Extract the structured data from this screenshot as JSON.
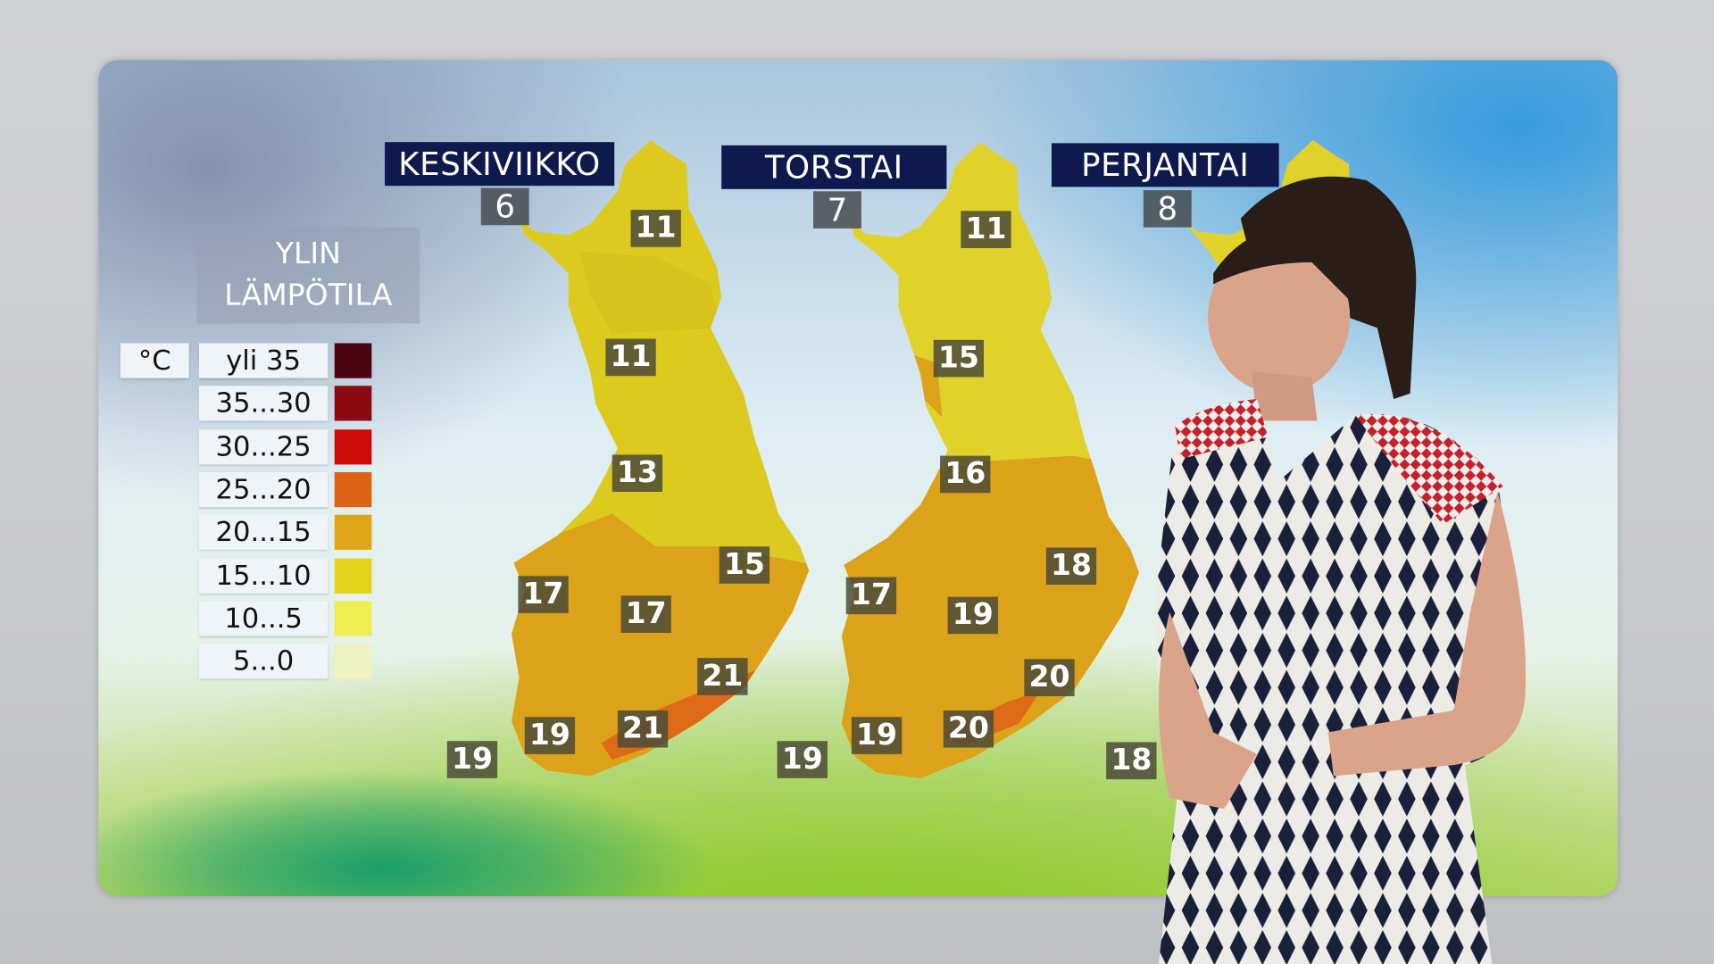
{
  "days": [
    {
      "label": "KESKIVIIKKO",
      "date": "6"
    },
    {
      "label": "TORSTAI",
      "date": "7"
    },
    {
      "label": "PERJANTAI",
      "date": "8"
    }
  ],
  "legend": {
    "title_line1": "YLIN",
    "title_line2": "LÄMPÖTILA",
    "unit": "°C",
    "items": [
      {
        "label": "yli 35",
        "color": "#4a0510"
      },
      {
        "label": "35...30",
        "color": "#8c0a12"
      },
      {
        "label": "30...25",
        "color": "#cc0a0a"
      },
      {
        "label": "25...20",
        "color": "#dd6414"
      },
      {
        "label": "20...15",
        "color": "#e0a418"
      },
      {
        "label": "15...10",
        "color": "#e6d21a"
      },
      {
        "label": "10...5",
        "color": "#eeee50"
      },
      {
        "label": "5...0",
        "color": "#eef2c0"
      }
    ]
  },
  "maps": [
    {
      "temps": [
        "11",
        "11",
        "13",
        "15",
        "17",
        "17",
        "21",
        "19",
        "21",
        "19"
      ]
    },
    {
      "temps": [
        "11",
        "15",
        "16",
        "18",
        "17",
        "19",
        "20",
        "19",
        "20",
        "19"
      ]
    },
    {
      "temps": [
        "18"
      ]
    }
  ]
}
